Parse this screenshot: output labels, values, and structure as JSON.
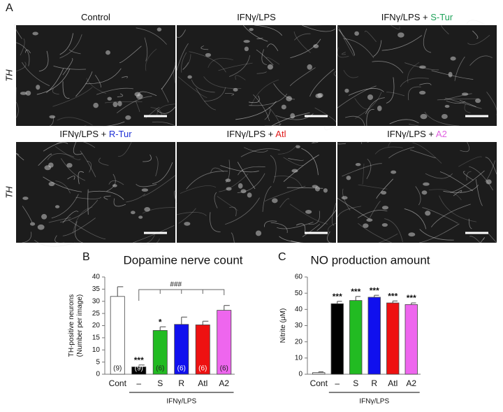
{
  "panel_a": {
    "label": "A",
    "rows": [
      {
        "label": "TH",
        "images": [
          {
            "title": "Control"
          },
          {
            "title": "IFNγ/LPS"
          },
          {
            "title": "IFNγ/LPS + ",
            "highlight": "S-Tur",
            "highlight_color": "#1fa35a"
          }
        ]
      },
      {
        "label": "TH",
        "images": [
          {
            "title": "IFNγ/LPS + ",
            "highlight": "R-Tur",
            "highlight_color": "#1d2fd6"
          },
          {
            "title": "IFNγ/LPS + ",
            "highlight": "Atl",
            "highlight_color": "#e01818"
          },
          {
            "title": "IFNγ/LPS + ",
            "highlight": "A2",
            "highlight_color": "#e060e0"
          }
        ]
      }
    ]
  },
  "chart_data": [
    {
      "type": "bar",
      "panel_label": "B",
      "title": "Dopamine nerve count",
      "ylabel": [
        "TH-positive neurons",
        "(Number per image)"
      ],
      "categories": [
        "Cont",
        "–",
        "S",
        "R",
        "Atl",
        "A2"
      ],
      "values": [
        32,
        3,
        18,
        20.5,
        20.3,
        26.3
      ],
      "errors": [
        4,
        0.8,
        1.5,
        3,
        1.5,
        2
      ],
      "colors": [
        "#ffffff",
        "#000000",
        "#22bb22",
        "#1010ee",
        "#ee1111",
        "#ee66ee"
      ],
      "significance": [
        null,
        "***",
        "*",
        null,
        null,
        null
      ],
      "n_labels": [
        "(9)",
        "(9)",
        "(6)",
        "(6)",
        "(6)",
        "(6)"
      ],
      "comparison_label": "###",
      "group_label": "IFNγ/LPS",
      "ylim": [
        0,
        40
      ],
      "yticks": [
        0,
        5,
        10,
        15,
        20,
        25,
        30,
        35,
        40
      ]
    },
    {
      "type": "bar",
      "panel_label": "C",
      "title": "NO production amount",
      "ylabel": [
        "Nitrite (μM)"
      ],
      "categories": [
        "Cont",
        "–",
        "S",
        "R",
        "Atl",
        "A2"
      ],
      "values": [
        1,
        43.5,
        45.5,
        47.5,
        44,
        43
      ],
      "errors": [
        0.5,
        1.5,
        2.5,
        1.2,
        1.2,
        1
      ],
      "colors": [
        "#e8e8e8",
        "#000000",
        "#22bb22",
        "#1010ee",
        "#ee1111",
        "#ee66ee"
      ],
      "significance": [
        null,
        "***",
        "***",
        "***",
        "***",
        "***"
      ],
      "group_label": "IFNγ/LPS",
      "ylim": [
        0,
        60
      ],
      "yticks": [
        0,
        10,
        20,
        30,
        40,
        50,
        60
      ]
    }
  ]
}
